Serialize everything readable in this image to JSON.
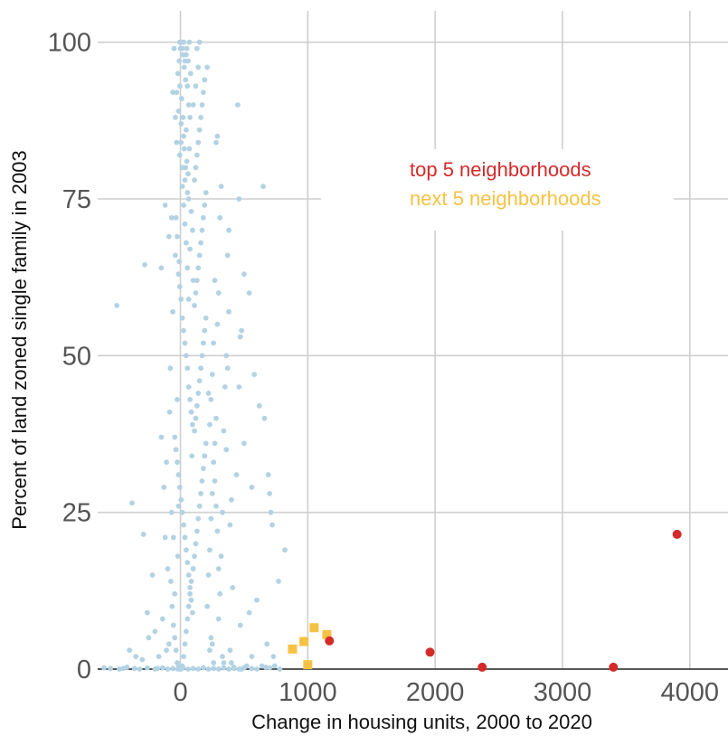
{
  "chart_data": {
    "type": "scatter",
    "xlabel": "Change in housing units, 2000 to 2020",
    "ylabel": "Percent of land zoned single family in 2003",
    "xlim": [
      -650,
      4300
    ],
    "ylim": [
      0,
      105
    ],
    "x_ticks": [
      0,
      1000,
      2000,
      3000,
      4000
    ],
    "y_ticks": [
      0,
      25,
      50,
      75,
      100
    ],
    "grid": true,
    "legend_position": "top-right",
    "colors": {
      "other": "#b3d3e4",
      "top5": "#d42a2a",
      "next5": "#f6c243",
      "grid": "#cfcfcf",
      "axis": "#222222",
      "tick_label": "#555555"
    },
    "series": [
      {
        "name": "top 5 neighborhoods",
        "marker": "circle",
        "points": [
          [
            1170,
            4.5
          ],
          [
            1960,
            2.7
          ],
          [
            2370,
            0.3
          ],
          [
            3400,
            0.3
          ],
          [
            3900,
            21.5
          ]
        ]
      },
      {
        "name": "next 5 neighborhoods",
        "marker": "square",
        "points": [
          [
            880,
            3.2
          ],
          [
            970,
            4.4
          ],
          [
            1050,
            6.6
          ],
          [
            1150,
            5.5
          ],
          [
            1000,
            0.7
          ]
        ]
      },
      {
        "name": "",
        "marker": "circle",
        "points": [
          [
            -500,
            58
          ],
          [
            -380,
            26.5
          ],
          [
            -290,
            21.5
          ],
          [
            -280,
            64.5
          ],
          [
            -260,
            9
          ],
          [
            -220,
            15
          ],
          [
            -150,
            37
          ],
          [
            -130,
            29
          ],
          [
            -120,
            21
          ],
          [
            -110,
            33
          ],
          [
            -100,
            16
          ],
          [
            -90,
            4
          ],
          [
            -80,
            48
          ],
          [
            -70,
            72
          ],
          [
            -60,
            57
          ],
          [
            -50,
            99
          ],
          [
            -40,
            66
          ],
          [
            -30,
            84
          ],
          [
            -20,
            18
          ],
          [
            -10,
            65
          ],
          [
            -45,
            12
          ],
          [
            -65,
            10
          ],
          [
            -85,
            41
          ],
          [
            -25,
            43
          ],
          [
            -15,
            26
          ],
          [
            -150,
            64
          ],
          [
            -120,
            74
          ],
          [
            -90,
            69
          ],
          [
            -60,
            92
          ],
          [
            -70,
            25
          ],
          [
            -40,
            88
          ],
          [
            -30,
            92
          ],
          [
            -20,
            95
          ],
          [
            -10,
            97
          ],
          [
            0,
            99
          ],
          [
            10,
            100
          ],
          [
            20,
            98
          ],
          [
            30,
            96
          ],
          [
            40,
            94
          ],
          [
            50,
            99
          ],
          [
            60,
            97
          ],
          [
            70,
            100
          ],
          [
            80,
            95
          ],
          [
            -5,
            100
          ],
          [
            15,
            99
          ],
          [
            25,
            100
          ],
          [
            35,
            97
          ],
          [
            45,
            98
          ],
          [
            55,
            93
          ],
          [
            65,
            90
          ],
          [
            75,
            88
          ],
          [
            -15,
            89
          ],
          [
            5,
            87
          ],
          [
            25,
            85
          ],
          [
            45,
            86
          ],
          [
            -5,
            82
          ],
          [
            15,
            80
          ],
          [
            35,
            78
          ],
          [
            55,
            76
          ],
          [
            65,
            75
          ],
          [
            -35,
            72
          ],
          [
            -25,
            69
          ],
          [
            -15,
            63
          ],
          [
            -5,
            61
          ],
          [
            5,
            59
          ],
          [
            15,
            56
          ],
          [
            25,
            54
          ],
          [
            35,
            52
          ],
          [
            45,
            50
          ],
          [
            55,
            48
          ],
          [
            65,
            45
          ],
          [
            75,
            43
          ],
          [
            85,
            41
          ],
          [
            95,
            39
          ],
          [
            -45,
            37
          ],
          [
            -35,
            35
          ],
          [
            -25,
            33
          ],
          [
            -15,
            31
          ],
          [
            -5,
            29
          ],
          [
            5,
            27
          ],
          [
            15,
            25
          ],
          [
            25,
            23
          ],
          [
            35,
            21
          ],
          [
            45,
            19
          ],
          [
            55,
            17
          ],
          [
            65,
            15
          ],
          [
            75,
            13
          ],
          [
            85,
            11
          ],
          [
            95,
            9
          ],
          [
            -55,
            7
          ],
          [
            -45,
            5
          ],
          [
            -35,
            3
          ],
          [
            -25,
            1
          ],
          [
            -15,
            0.5
          ],
          [
            -5,
            0
          ],
          [
            5,
            0
          ],
          [
            15,
            0.5
          ],
          [
            25,
            2
          ],
          [
            35,
            4
          ],
          [
            45,
            6
          ],
          [
            55,
            8
          ],
          [
            65,
            10
          ],
          [
            75,
            12
          ],
          [
            85,
            14
          ],
          [
            100,
            16
          ],
          [
            110,
            18
          ],
          [
            120,
            20
          ],
          [
            130,
            22
          ],
          [
            140,
            24
          ],
          [
            150,
            26
          ],
          [
            160,
            28
          ],
          [
            170,
            30
          ],
          [
            180,
            32
          ],
          [
            190,
            34
          ],
          [
            200,
            36
          ],
          [
            110,
            38
          ],
          [
            120,
            40
          ],
          [
            130,
            42
          ],
          [
            140,
            44
          ],
          [
            150,
            46
          ],
          [
            160,
            48
          ],
          [
            170,
            50
          ],
          [
            180,
            52
          ],
          [
            190,
            54
          ],
          [
            200,
            56
          ],
          [
            110,
            58
          ],
          [
            120,
            60
          ],
          [
            130,
            62
          ],
          [
            140,
            64
          ],
          [
            150,
            66
          ],
          [
            160,
            68
          ],
          [
            170,
            70
          ],
          [
            180,
            72
          ],
          [
            190,
            74
          ],
          [
            200,
            76
          ],
          [
            110,
            78
          ],
          [
            120,
            80
          ],
          [
            130,
            82
          ],
          [
            140,
            84
          ],
          [
            150,
            86
          ],
          [
            160,
            88
          ],
          [
            170,
            90
          ],
          [
            180,
            92
          ],
          [
            190,
            94
          ],
          [
            210,
            96
          ],
          [
            130,
            99
          ],
          [
            150,
            100
          ],
          [
            100,
            90
          ],
          [
            120,
            93
          ],
          [
            140,
            96
          ],
          [
            220,
            44
          ],
          [
            230,
            39
          ],
          [
            240,
            43
          ],
          [
            250,
            47
          ],
          [
            260,
            52
          ],
          [
            270,
            62
          ],
          [
            280,
            84
          ],
          [
            290,
            85
          ],
          [
            230,
            3
          ],
          [
            240,
            5
          ],
          [
            250,
            4
          ],
          [
            260,
            1
          ],
          [
            270,
            30
          ],
          [
            280,
            26
          ],
          [
            290,
            22
          ],
          [
            300,
            16
          ],
          [
            210,
            10
          ],
          [
            220,
            15
          ],
          [
            230,
            19
          ],
          [
            240,
            24
          ],
          [
            250,
            28
          ],
          [
            260,
            33
          ],
          [
            270,
            36
          ],
          [
            280,
            40
          ],
          [
            290,
            55
          ],
          [
            300,
            60
          ],
          [
            310,
            72
          ],
          [
            320,
            77
          ],
          [
            330,
            2
          ],
          [
            340,
            1
          ],
          [
            360,
            35
          ],
          [
            370,
            48
          ],
          [
            380,
            57
          ],
          [
            390,
            3
          ],
          [
            400,
            1
          ],
          [
            420,
            0.3
          ],
          [
            440,
            31
          ],
          [
            460,
            45
          ],
          [
            470,
            53
          ],
          [
            480,
            54
          ],
          [
            500,
            63
          ],
          [
            520,
            0.5
          ],
          [
            540,
            9
          ],
          [
            560,
            2
          ],
          [
            450,
            90
          ],
          [
            460,
            75
          ],
          [
            470,
            7
          ],
          [
            480,
            0
          ],
          [
            300,
            8
          ],
          [
            310,
            12
          ],
          [
            320,
            18
          ],
          [
            330,
            25
          ],
          [
            340,
            38
          ],
          [
            350,
            45
          ],
          [
            360,
            50
          ],
          [
            370,
            66
          ],
          [
            380,
            70
          ],
          [
            390,
            23
          ],
          [
            400,
            27
          ],
          [
            410,
            13
          ],
          [
            620,
            42
          ],
          [
            650,
            77
          ],
          [
            660,
            40
          ],
          [
            670,
            0.3
          ],
          [
            690,
            31
          ],
          [
            700,
            28
          ],
          [
            710,
            25
          ],
          [
            720,
            23
          ],
          [
            730,
            2
          ],
          [
            740,
            0.5
          ],
          [
            770,
            14
          ],
          [
            820,
            19
          ],
          [
            600,
            0
          ],
          [
            640,
            0.5
          ],
          [
            680,
            4
          ],
          [
            560,
            29
          ],
          [
            580,
            47
          ],
          [
            600,
            11
          ],
          [
            540,
            60
          ],
          [
            500,
            36
          ],
          [
            -600,
            0.2
          ],
          [
            -550,
            0.1
          ],
          [
            -480,
            0
          ],
          [
            -450,
            0.1
          ],
          [
            -420,
            0.3
          ],
          [
            -360,
            0.1
          ],
          [
            -320,
            0
          ],
          [
            -260,
            0.2
          ],
          [
            -200,
            0
          ],
          [
            -180,
            0.1
          ],
          [
            -140,
            0.2
          ],
          [
            -100,
            0
          ],
          [
            -60,
            0.1
          ],
          [
            -20,
            0
          ],
          [
            20,
            0.2
          ],
          [
            60,
            0
          ],
          [
            100,
            0.1
          ],
          [
            140,
            0
          ],
          [
            180,
            0.2
          ],
          [
            220,
            0
          ],
          [
            260,
            0.1
          ],
          [
            300,
            0
          ],
          [
            340,
            0.2
          ],
          [
            380,
            0
          ],
          [
            420,
            0.1
          ],
          [
            460,
            0
          ],
          [
            500,
            0.2
          ],
          [
            560,
            0.1
          ],
          [
            700,
            0.2
          ],
          [
            780,
            0
          ],
          [
            -400,
            3
          ],
          [
            -350,
            2
          ],
          [
            -300,
            1.5
          ],
          [
            -250,
            5
          ],
          [
            -200,
            6
          ],
          [
            -170,
            2
          ],
          [
            -140,
            8
          ],
          [
            -110,
            3
          ],
          [
            -75,
            14
          ],
          [
            -55,
            21
          ],
          [
            90,
            34
          ],
          [
            100,
            62
          ],
          [
            95,
            70
          ],
          [
            85,
            73
          ],
          [
            75,
            67
          ],
          [
            65,
            59
          ],
          [
            55,
            64
          ],
          [
            45,
            68
          ],
          [
            35,
            71
          ],
          [
            25,
            74
          ],
          [
            15,
            77
          ],
          [
            5,
            84
          ],
          [
            -5,
            93
          ],
          [
            10,
            91
          ],
          [
            20,
            88
          ],
          [
            30,
            83
          ],
          [
            40,
            80
          ],
          [
            50,
            81
          ],
          [
            60,
            79
          ],
          [
            70,
            83
          ]
        ]
      }
    ]
  }
}
